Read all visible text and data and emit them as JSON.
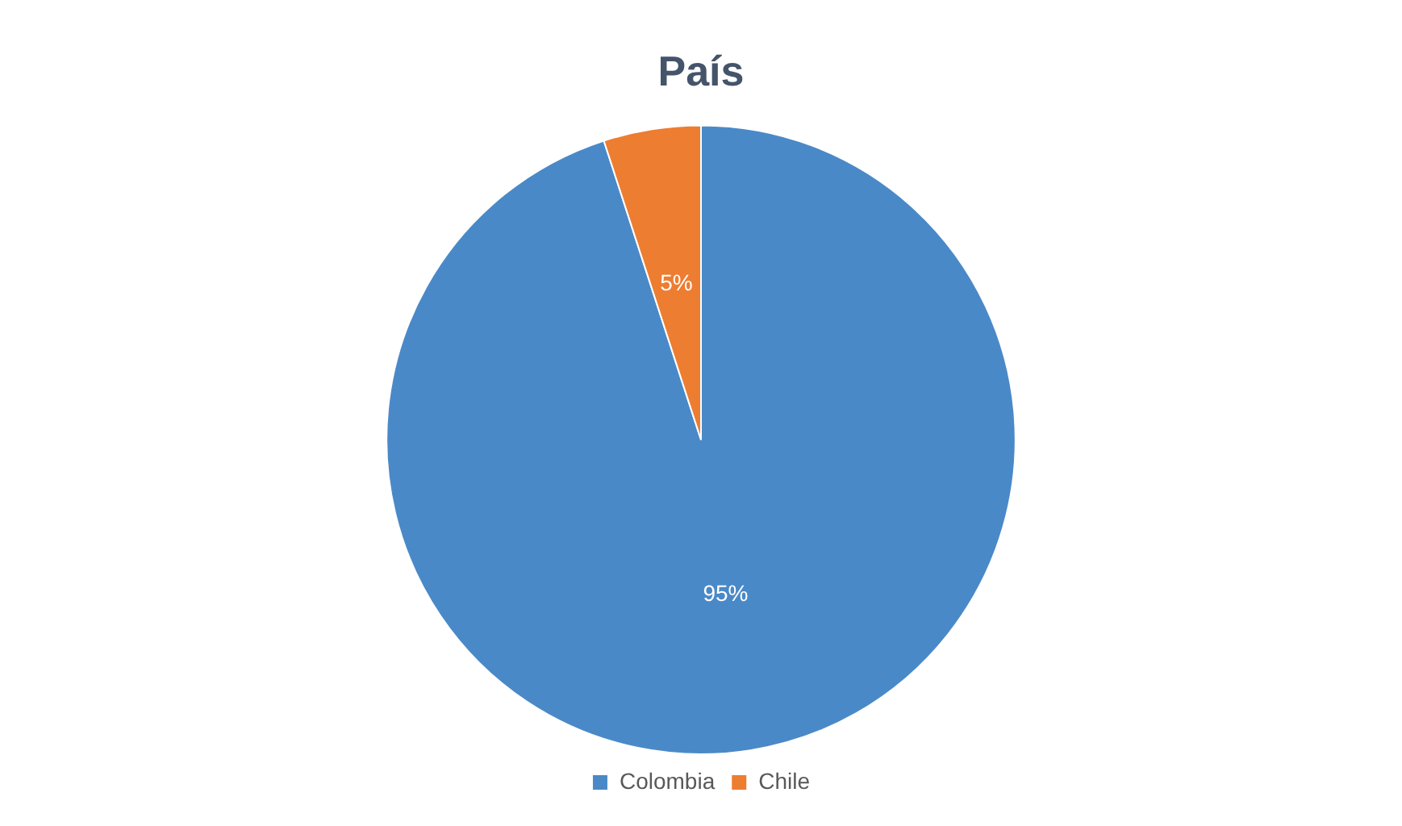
{
  "chart_data": {
    "type": "pie",
    "title": "País",
    "categories": [
      "Colombia",
      "Chile"
    ],
    "values": [
      95,
      5
    ],
    "colors": [
      "#4a89c8",
      "#ed7d31"
    ],
    "value_labels": [
      "95%",
      "5%"
    ],
    "legend": "bottom"
  }
}
